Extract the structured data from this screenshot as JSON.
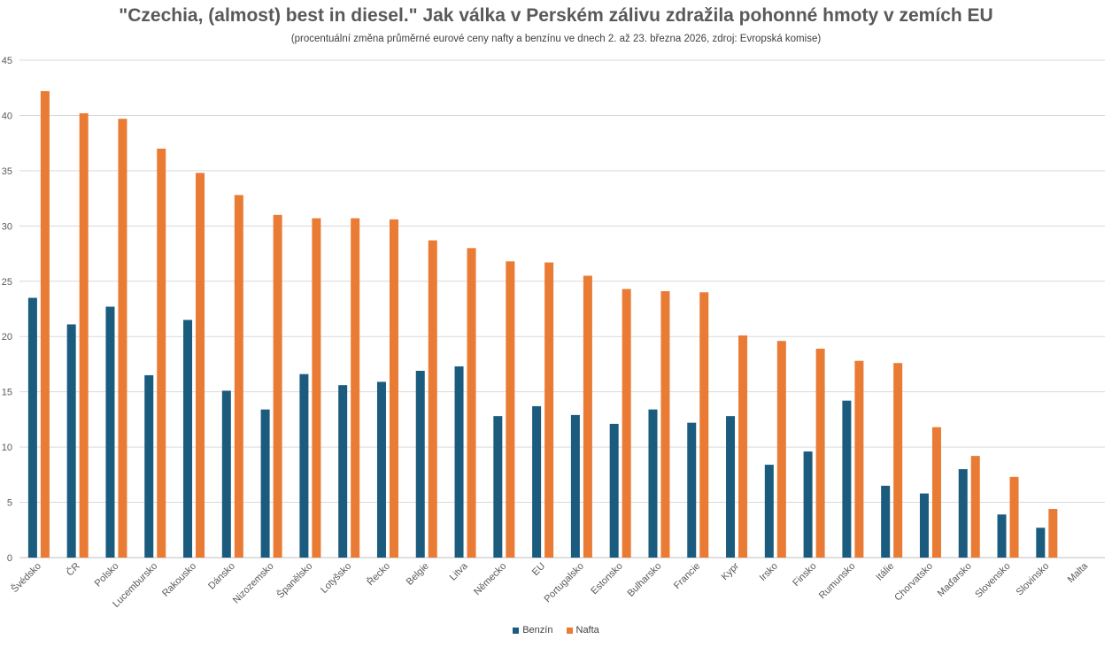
{
  "chart_data": {
    "type": "bar",
    "title": "\"Czechia, (almost) best in diesel.\" Jak válka v Perském zálivu zdražila pohonné hmoty v zemích EU",
    "subtitle": "(procentuální změna průměrné eurové ceny nafty a benzínu ve dnech 2. až 23. března 2026, zdroj: Evropská komise)",
    "xlabel": "",
    "ylabel": "",
    "ylim": [
      0,
      45
    ],
    "yticks": [
      0,
      5,
      10,
      15,
      20,
      25,
      30,
      35,
      40,
      45
    ],
    "grid": true,
    "legend_position": "bottom",
    "categories": [
      "Švédsko",
      "ČR",
      "Polsko",
      "Lucembursko",
      "Rakousko",
      "Dánsko",
      "Nizozemsko",
      "Španělsko",
      "Lotyšsko",
      "Řecko",
      "Belgie",
      "Litva",
      "Německo",
      "EU",
      "Portugalsko",
      "Estonsko",
      "Bulharsko",
      "Francie",
      "Kypr",
      "Irsko",
      "Finsko",
      "Rumunsko",
      "Itálie",
      "Chorvatsko",
      "Maďarsko",
      "Slovensko",
      "Slovinsko",
      "Malta"
    ],
    "series": [
      {
        "name": "Benzín",
        "color": "#1a5b7e",
        "values": [
          23.5,
          21.1,
          22.7,
          16.5,
          21.5,
          15.1,
          13.4,
          16.6,
          15.6,
          15.9,
          16.9,
          17.3,
          12.8,
          13.7,
          12.9,
          12.1,
          13.4,
          12.2,
          12.8,
          8.4,
          9.6,
          14.2,
          6.5,
          5.8,
          8.0,
          3.9,
          2.7,
          0
        ]
      },
      {
        "name": "Nafta",
        "color": "#e97b35",
        "values": [
          42.2,
          40.2,
          39.7,
          37.0,
          34.8,
          32.8,
          31.0,
          30.7,
          30.7,
          30.6,
          28.7,
          28.0,
          26.8,
          26.7,
          25.5,
          24.3,
          24.1,
          24.0,
          20.1,
          19.6,
          18.9,
          17.8,
          17.6,
          11.8,
          9.2,
          7.3,
          4.4,
          0
        ]
      }
    ]
  }
}
